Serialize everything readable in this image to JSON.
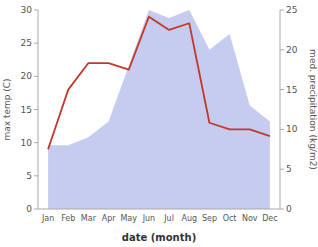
{
  "chart_data": {
    "type": "line",
    "xlabel": "date (month)",
    "ylabel": "max temp (C)",
    "y2label": "med. precipitation (kg/m2)",
    "categories": [
      "Jan",
      "Feb",
      "Mar",
      "Apr",
      "May",
      "Jun",
      "Jul",
      "Aug",
      "Sep",
      "Oct",
      "Nov",
      "Dec"
    ],
    "series": [
      {
        "type": "area",
        "color": "#c5ccf0",
        "axis": "y2",
        "values": [
          8,
          8,
          9,
          11,
          18,
          25,
          24,
          25,
          20,
          22,
          13,
          11
        ]
      },
      {
        "type": "line",
        "color": "#c0392b",
        "values": [
          9,
          18,
          22,
          22,
          21,
          29,
          27,
          28,
          13,
          12,
          12,
          11
        ]
      }
    ],
    "ylim": [
      0,
      30
    ],
    "yticks": [
      0,
      5,
      10,
      15,
      20,
      25,
      30
    ],
    "y2lim": [
      0,
      25
    ],
    "y2ticks": [
      0,
      5,
      10,
      15,
      20,
      25
    ],
    "grid": false
  }
}
